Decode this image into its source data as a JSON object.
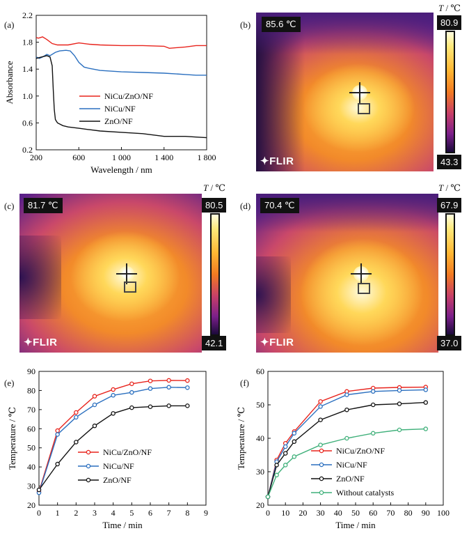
{
  "panels": {
    "a": {
      "label": "(a)"
    },
    "b": {
      "label": "(b)",
      "readout": "85.6 ℃",
      "brand": "FLIR",
      "scale_title_italic": "T",
      "scale_title_rest": " / ℃",
      "scale_max": "80.9",
      "scale_min": "43.3"
    },
    "c": {
      "label": "(c)",
      "readout": "81.7 ℃",
      "brand": "FLIR",
      "scale_title_italic": "T",
      "scale_title_rest": " / ℃",
      "scale_max": "80.5",
      "scale_min": "42.1"
    },
    "d": {
      "label": "(d)",
      "readout": "70.4 ℃",
      "brand": "FLIR",
      "scale_title_italic": "T",
      "scale_title_rest": " / ℃",
      "scale_max": "67.9",
      "scale_min": "37.0"
    },
    "e": {
      "label": "(e)"
    },
    "f": {
      "label": "(f)"
    }
  },
  "chart_data": [
    {
      "id": "a",
      "type": "line",
      "xlabel": "Wavelength / nm",
      "ylabel": "Absorbance",
      "xlim": [
        200,
        1800
      ],
      "ylim": [
        0.2,
        2.2
      ],
      "xticks": [
        200,
        600,
        1000,
        1400,
        1800
      ],
      "xtick_labels": [
        "200",
        "600",
        "1 000",
        "1 400",
        "1 800"
      ],
      "yticks": [
        0.2,
        0.6,
        1.0,
        1.4,
        1.8,
        2.2
      ],
      "ytick_labels": [
        "0.2",
        "0.6",
        "1.0",
        "1.4",
        "1.8",
        "2.2"
      ],
      "legend_position": "middle-right",
      "series": [
        {
          "name": "NiCu/ZnO/NF",
          "color": "#e8231c",
          "x": [
            200,
            220,
            260,
            300,
            350,
            400,
            500,
            600,
            700,
            800,
            1000,
            1200,
            1400,
            1450,
            1600,
            1700,
            1800
          ],
          "y": [
            1.87,
            1.86,
            1.88,
            1.84,
            1.78,
            1.76,
            1.76,
            1.79,
            1.77,
            1.76,
            1.75,
            1.75,
            1.74,
            1.71,
            1.73,
            1.75,
            1.75
          ]
        },
        {
          "name": "NiCu/NF",
          "color": "#2a6fbf",
          "x": [
            200,
            230,
            260,
            300,
            330,
            380,
            420,
            480,
            520,
            560,
            600,
            650,
            700,
            800,
            1000,
            1200,
            1400,
            1600,
            1700,
            1800
          ],
          "y": [
            1.58,
            1.56,
            1.58,
            1.62,
            1.6,
            1.65,
            1.67,
            1.68,
            1.67,
            1.6,
            1.5,
            1.43,
            1.41,
            1.38,
            1.36,
            1.35,
            1.34,
            1.32,
            1.31,
            1.31
          ]
        },
        {
          "name": "ZnO/NF",
          "color": "#111111",
          "x": [
            200,
            250,
            300,
            330,
            350,
            360,
            370,
            380,
            400,
            450,
            500,
            600,
            700,
            800,
            1000,
            1200,
            1400,
            1600,
            1700,
            1800
          ],
          "y": [
            1.56,
            1.58,
            1.6,
            1.58,
            1.45,
            1.1,
            0.8,
            0.65,
            0.6,
            0.56,
            0.54,
            0.52,
            0.5,
            0.48,
            0.46,
            0.44,
            0.4,
            0.4,
            0.39,
            0.38
          ]
        }
      ]
    },
    {
      "id": "e",
      "type": "line",
      "xlabel": "Time / min",
      "ylabel": "Temperature / ℃",
      "xlim": [
        0,
        9
      ],
      "ylim": [
        20,
        90
      ],
      "xticks": [
        0,
        1,
        2,
        3,
        4,
        5,
        6,
        7,
        8,
        9
      ],
      "yticks": [
        20,
        30,
        40,
        50,
        60,
        70,
        80,
        90
      ],
      "legend_position": "lower-right",
      "series": [
        {
          "name": "NiCu/ZnO/NF",
          "color": "#e8231c",
          "x": [
            0,
            1,
            2,
            3,
            4,
            5,
            6,
            7,
            8
          ],
          "y": [
            27,
            59,
            68.5,
            77,
            80.5,
            83.5,
            85,
            85.3,
            85.2
          ]
        },
        {
          "name": "NiCu/NF",
          "color": "#2a6fbf",
          "x": [
            0,
            1,
            2,
            3,
            4,
            5,
            6,
            7,
            8
          ],
          "y": [
            26.5,
            57,
            66,
            72.5,
            77.5,
            79,
            81,
            81.7,
            81.5
          ]
        },
        {
          "name": "ZnO/NF",
          "color": "#111111",
          "x": [
            0,
            1,
            2,
            3,
            4,
            5,
            6,
            7,
            8
          ],
          "y": [
            28,
            41.5,
            53,
            61.5,
            68,
            71,
            71.5,
            72,
            72
          ]
        }
      ]
    },
    {
      "id": "f",
      "type": "line",
      "xlabel": "Time / min",
      "ylabel": "Temperature / ℃",
      "xlim": [
        0,
        100
      ],
      "ylim": [
        20,
        60
      ],
      "xticks": [
        0,
        10,
        20,
        30,
        40,
        50,
        60,
        70,
        80,
        90,
        100
      ],
      "yticks": [
        20,
        30,
        40,
        50,
        60
      ],
      "legend_position": "lower-right",
      "series": [
        {
          "name": "NiCu/ZnO/NF",
          "color": "#e8231c",
          "x": [
            0,
            5,
            10,
            15,
            30,
            45,
            60,
            75,
            90
          ],
          "y": [
            22.5,
            33.5,
            38.5,
            42,
            51,
            54,
            55,
            55.2,
            55.3
          ]
        },
        {
          "name": "NiCu/NF",
          "color": "#2a6fbf",
          "x": [
            0,
            5,
            10,
            15,
            30,
            45,
            60,
            75,
            90
          ],
          "y": [
            22.5,
            33,
            37.5,
            41.5,
            49.5,
            53,
            54,
            54.3,
            54.5
          ]
        },
        {
          "name": "ZnO/NF",
          "color": "#111111",
          "x": [
            0,
            5,
            10,
            15,
            30,
            45,
            60,
            75,
            90
          ],
          "y": [
            22.5,
            32,
            35.5,
            39,
            45.5,
            48.5,
            50,
            50.3,
            50.7
          ]
        },
        {
          "name": "Without catalysts",
          "color": "#3fb07a",
          "x": [
            0,
            5,
            10,
            15,
            30,
            45,
            60,
            75,
            90
          ],
          "y": [
            22.5,
            29,
            32,
            34.5,
            38,
            40,
            41.5,
            42.5,
            42.8
          ]
        }
      ]
    }
  ]
}
